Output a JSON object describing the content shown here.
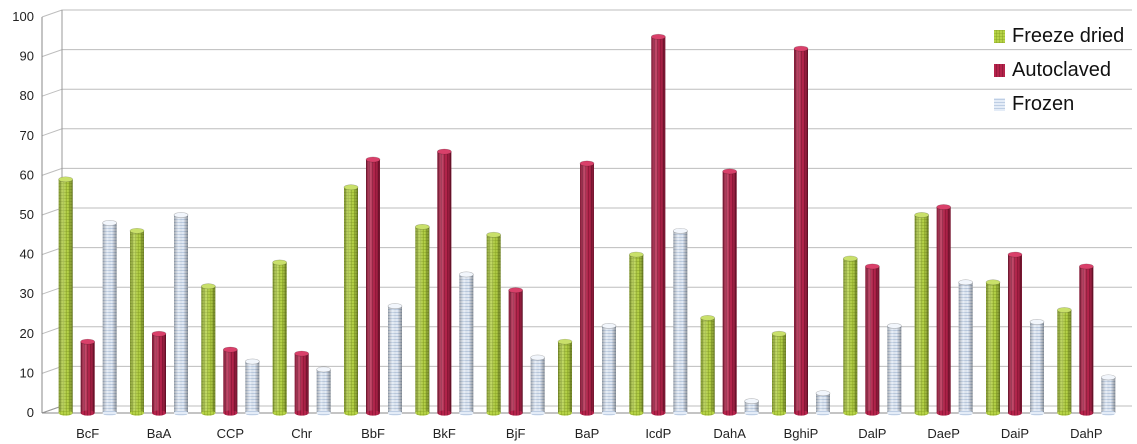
{
  "chart_data": {
    "type": "bar",
    "categories": [
      "BcF",
      "BaA",
      "CCP",
      "Chr",
      "BbF",
      "BkF",
      "BjF",
      "BaP",
      "IcdP",
      "DahA",
      "BghiP",
      "DalP",
      "DaeP",
      "DaiP",
      "DahP"
    ],
    "series": [
      {
        "name": "Freeze dried",
        "color": "#a8c83a",
        "values": [
          59,
          46,
          32,
          38,
          57,
          47,
          45,
          18,
          40,
          24,
          20,
          39,
          50,
          33,
          26
        ]
      },
      {
        "name": "Autoclaved",
        "color": "#b5234b",
        "values": [
          18,
          20,
          16,
          15,
          64,
          66,
          31,
          63,
          95,
          61,
          92,
          37,
          52,
          40,
          37
        ]
      },
      {
        "name": "Frozen",
        "color": "#c8d8ee",
        "values": [
          48,
          50,
          13,
          11,
          27,
          35,
          14,
          22,
          46,
          3,
          5,
          22,
          33,
          23,
          9
        ]
      }
    ],
    "yticks": [
      0,
      10,
      20,
      30,
      40,
      50,
      60,
      70,
      80,
      90,
      100
    ],
    "ylim": [
      0,
      100
    ],
    "legend": "top-right",
    "grid": true,
    "title": "",
    "xlabel": "",
    "ylabel": ""
  }
}
